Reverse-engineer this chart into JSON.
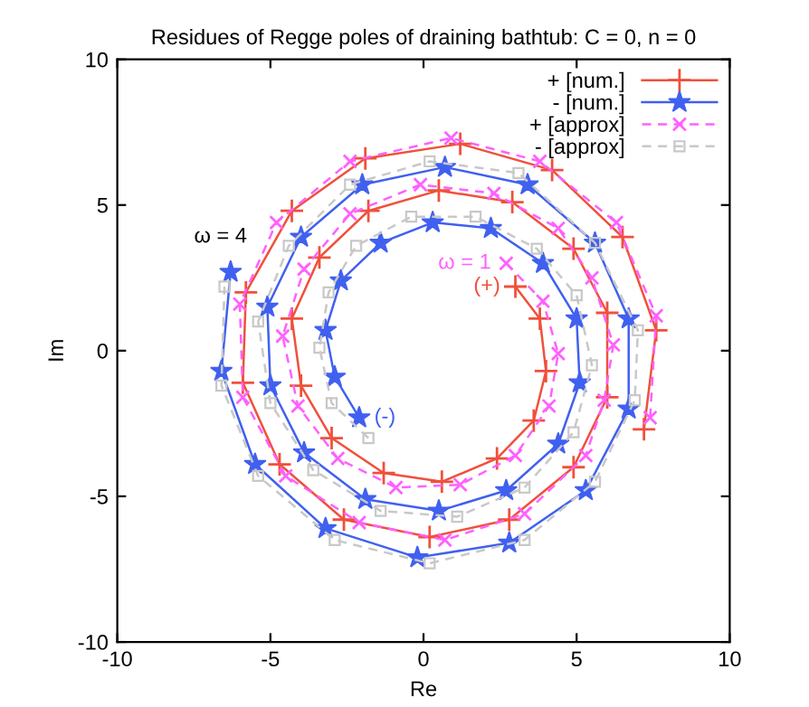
{
  "chart_data": {
    "type": "line",
    "title": "Residues of Regge poles of draining bathtub: C = 0, n = 0",
    "xlabel": "Re",
    "ylabel": "Im",
    "xlim": [
      -10,
      10
    ],
    "ylim": [
      -10,
      10
    ],
    "xticks": [
      -10,
      -5,
      0,
      5,
      10
    ],
    "yticks": [
      -10,
      -5,
      0,
      5,
      10
    ],
    "grid": false,
    "legend": "top right",
    "annotations": [
      {
        "text": "ω = 4",
        "x": -6.3,
        "y": 2.7
      },
      {
        "text": "ω = 1",
        "x": 2.7,
        "y": 3.0
      },
      {
        "text": "(+)",
        "x": 3.0,
        "y": 2.2
      },
      {
        "text": "(-)",
        "x": -2.1,
        "y": -2.3
      }
    ],
    "series": [
      {
        "name": "+ [num.]",
        "color": "#f0503c",
        "marker": "plus",
        "line_style": "solid",
        "x": [
          3.0,
          3.8,
          4.0,
          3.6,
          2.4,
          0.6,
          -1.3,
          -3.0,
          -4.0,
          -4.3,
          -3.4,
          -1.8,
          0.5,
          2.9,
          4.9,
          6.0,
          6.0,
          4.9,
          2.8,
          0.2,
          -2.6,
          -4.7,
          -5.9,
          -5.8,
          -4.3,
          -1.9,
          1.2,
          4.2,
          6.5,
          7.6,
          7.2
        ],
        "values": [
          2.2,
          1.1,
          -0.7,
          -2.4,
          -3.7,
          -4.5,
          -4.2,
          -3.0,
          -1.2,
          1.1,
          3.2,
          4.8,
          5.5,
          5.1,
          3.5,
          1.3,
          -1.6,
          -4.0,
          -5.8,
          -6.4,
          -5.8,
          -3.9,
          -1.1,
          2.0,
          4.8,
          6.6,
          7.1,
          6.2,
          3.9,
          0.7,
          -2.7
        ]
      },
      {
        "name": "- [num.]",
        "color": "#4060f0",
        "marker": "star",
        "line_style": "solid",
        "x": [
          -2.1,
          -2.9,
          -3.2,
          -2.7,
          -1.4,
          0.3,
          2.2,
          3.9,
          5.0,
          5.1,
          4.4,
          2.7,
          0.5,
          -1.9,
          -3.9,
          -5.0,
          -5.1,
          -4.0,
          -2.0,
          0.7,
          3.4,
          5.6,
          6.7,
          6.7,
          5.3,
          2.8,
          -0.2,
          -3.2,
          -5.5,
          -6.6,
          -6.3
        ],
        "values": [
          -2.3,
          -0.9,
          0.7,
          2.4,
          3.7,
          4.4,
          4.2,
          3.0,
          1.1,
          -1.1,
          -3.2,
          -4.8,
          -5.5,
          -5.1,
          -3.5,
          -1.2,
          1.5,
          3.9,
          5.7,
          6.3,
          5.7,
          3.7,
          1.1,
          -2.0,
          -4.8,
          -6.6,
          -7.1,
          -6.1,
          -3.9,
          -0.7,
          2.7
        ]
      },
      {
        "name": "+ [approx]",
        "color": "#ff60ff",
        "marker": "x",
        "line_style": "dashed",
        "x": [
          2.7,
          3.9,
          4.4,
          4.1,
          3.0,
          1.2,
          -0.9,
          -2.8,
          -4.1,
          -4.6,
          -3.9,
          -2.4,
          -0.1,
          2.3,
          4.4,
          5.5,
          6.2,
          5.9,
          5.3,
          3.3,
          0.7,
          -2.1,
          -4.5,
          -5.9,
          -6.0,
          -4.8,
          -2.4,
          0.9,
          3.8,
          6.3,
          7.6,
          7.4
        ],
        "values": [
          3.0,
          1.7,
          -0.1,
          -1.9,
          -3.6,
          -4.6,
          -4.7,
          -3.7,
          -1.9,
          0.5,
          2.8,
          4.7,
          5.7,
          5.4,
          4.2,
          2.5,
          0.2,
          -1.7,
          -3.6,
          -5.6,
          -6.5,
          -5.9,
          -4.3,
          -1.6,
          1.6,
          4.4,
          6.5,
          7.3,
          6.5,
          4.4,
          1.2,
          -2.3
        ]
      },
      {
        "name": "- [approx]",
        "color": "#c8c8c8",
        "marker": "square",
        "line_style": "dashed",
        "x": [
          -1.8,
          -3.0,
          -3.4,
          -3.1,
          -2.2,
          -0.4,
          1.7,
          3.7,
          5.0,
          5.5,
          4.9,
          3.3,
          1.1,
          -1.4,
          -3.6,
          -5.0,
          -5.4,
          -4.4,
          -2.4,
          0.2,
          3.1,
          5.6,
          7.0,
          6.9,
          5.6,
          3.3,
          0.2,
          -2.9,
          -5.4,
          -6.6,
          -6.5
        ],
        "values": [
          -3.0,
          -1.8,
          0.1,
          2.0,
          3.6,
          4.6,
          4.6,
          3.5,
          1.9,
          -0.5,
          -2.8,
          -4.7,
          -5.7,
          -5.5,
          -4.1,
          -1.8,
          1.0,
          3.6,
          5.7,
          6.5,
          6.1,
          3.7,
          0.7,
          -1.7,
          -4.5,
          -6.5,
          -7.3,
          -6.5,
          -4.3,
          -1.2,
          2.2
        ]
      }
    ]
  }
}
